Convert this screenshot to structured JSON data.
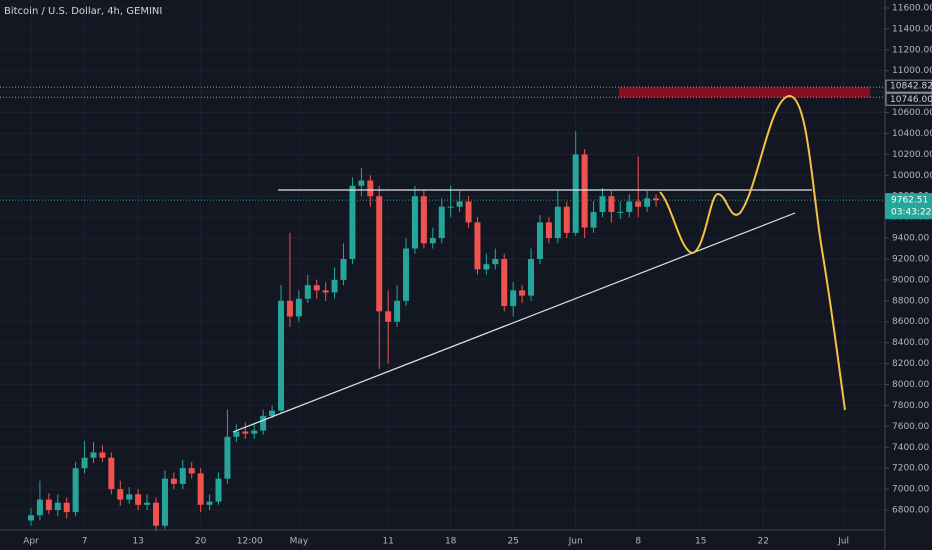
{
  "chart_data": {
    "type": "candlestick",
    "title": "Bitcoin / U.S. Dollar, 4h, GEMINI",
    "x": [
      0,
      1,
      2,
      3,
      4,
      5,
      6,
      7,
      8,
      9,
      10,
      11,
      12,
      13,
      14,
      15,
      16,
      17,
      18,
      19,
      20,
      21,
      22,
      23,
      24,
      25,
      26,
      27,
      28,
      29,
      30,
      31,
      32,
      33,
      34,
      35,
      36,
      37,
      38,
      39,
      40,
      41,
      42,
      43,
      44,
      45,
      46,
      47,
      48,
      49,
      50,
      51,
      52,
      53,
      54,
      55,
      56,
      57,
      58,
      59,
      60,
      61,
      62,
      63,
      64,
      65,
      66,
      67,
      68,
      69,
      70
    ],
    "open": [
      6700,
      6750,
      6900,
      6800,
      6870,
      6780,
      7200,
      7300,
      7350,
      7300,
      7000,
      6900,
      6950,
      6850,
      6870,
      6650,
      7100,
      7050,
      7200,
      7150,
      6850,
      6880,
      7100,
      7500,
      7550,
      7530,
      7560,
      7700,
      7750,
      8800,
      8650,
      8820,
      8950,
      8900,
      8880,
      9000,
      9200,
      9900,
      9950,
      9800,
      8700,
      8600,
      8800,
      9300,
      9800,
      9350,
      9400,
      9700,
      9700,
      9750,
      9550,
      9100,
      9150,
      9200,
      8750,
      8900,
      8850,
      9200,
      9550,
      9400,
      9700,
      9450,
      10200,
      9500,
      9650,
      9800,
      9650,
      9650,
      9750,
      9700,
      9780
    ],
    "high": [
      6820,
      7080,
      6960,
      6950,
      6920,
      7260,
      7460,
      7450,
      7420,
      7350,
      7080,
      7020,
      7000,
      6950,
      6920,
      7180,
      7160,
      7280,
      7260,
      7200,
      6950,
      7160,
      7760,
      7620,
      7640,
      7620,
      7760,
      7800,
      8950,
      9450,
      8900,
      9050,
      9000,
      8980,
      9120,
      9350,
      9980,
      10070,
      10000,
      9900,
      8900,
      8950,
      9400,
      9900,
      9850,
      9500,
      9780,
      9900,
      9850,
      9800,
      9600,
      9250,
      9300,
      9250,
      8980,
      8950,
      9300,
      9620,
      9600,
      9850,
      9750,
      10420,
      10250,
      9750,
      9880,
      9850,
      9750,
      9820,
      10180,
      9850,
      9820
    ],
    "low": [
      6650,
      6700,
      6760,
      6740,
      6720,
      6740,
      7150,
      7250,
      7260,
      6950,
      6840,
      6860,
      6800,
      6800,
      6600,
      6620,
      7000,
      7000,
      7100,
      6780,
      6800,
      6850,
      7050,
      7450,
      7480,
      7480,
      7520,
      7680,
      7720,
      8550,
      8600,
      8780,
      8820,
      8800,
      8820,
      8950,
      9150,
      9800,
      9700,
      8150,
      8200,
      8550,
      8750,
      9250,
      9300,
      9300,
      9350,
      9600,
      9650,
      9500,
      9050,
      9050,
      9100,
      8700,
      8650,
      8780,
      8800,
      9150,
      9350,
      9350,
      9400,
      9420,
      9400,
      9450,
      9600,
      9550,
      9580,
      9600,
      9600,
      9650,
      9700
    ],
    "close": [
      6750,
      6900,
      6800,
      6870,
      6780,
      7200,
      7300,
      7350,
      7300,
      7000,
      6900,
      6950,
      6850,
      6870,
      6650,
      7100,
      7050,
      7200,
      7150,
      6850,
      6880,
      7100,
      7500,
      7550,
      7530,
      7560,
      7700,
      7750,
      8800,
      8650,
      8820,
      8950,
      8900,
      8880,
      9000,
      9200,
      9900,
      9950,
      9800,
      8700,
      8600,
      8800,
      9300,
      9800,
      9350,
      9400,
      9700,
      9700,
      9750,
      9550,
      9100,
      9150,
      9200,
      8750,
      8900,
      8850,
      9200,
      9550,
      9400,
      9700,
      9450,
      10200,
      9500,
      9650,
      9800,
      9650,
      9650,
      9750,
      9700,
      9780,
      9762.51
    ],
    "up_color": "#26a69a",
    "down_color": "#ef5350",
    "xlim": [
      -3.47,
      95.64
    ],
    "xticks": [
      {
        "value": 0,
        "label": "Apr"
      },
      {
        "value": 6,
        "label": "7"
      },
      {
        "value": 12,
        "label": "13"
      },
      {
        "value": 19,
        "label": "20"
      },
      {
        "value": 24.5,
        "label": "12:00"
      },
      {
        "value": 30,
        "label": "May"
      },
      {
        "value": 40,
        "label": "11"
      },
      {
        "value": 47,
        "label": "18"
      },
      {
        "value": 54,
        "label": "25"
      },
      {
        "value": 61,
        "label": "Jun"
      },
      {
        "value": 68,
        "label": "8"
      },
      {
        "value": 75,
        "label": "15"
      },
      {
        "value": 82,
        "label": "22"
      },
      {
        "value": 91,
        "label": "Jul"
      }
    ],
    "ylim": [
      6609,
      11676
    ],
    "yticks": [
      {
        "value": 6800,
        "label": "6800.00"
      },
      {
        "value": 7000,
        "label": "7000.00"
      },
      {
        "value": 7200,
        "label": "7200.00"
      },
      {
        "value": 7400,
        "label": "7400.00"
      },
      {
        "value": 7600,
        "label": "7600.00"
      },
      {
        "value": 7800,
        "label": "7800.00"
      },
      {
        "value": 8000,
        "label": "8000.00"
      },
      {
        "value": 8200,
        "label": "8200.00"
      },
      {
        "value": 8400,
        "label": "8400.00"
      },
      {
        "value": 8600,
        "label": "8600.00"
      },
      {
        "value": 8800,
        "label": "8800.00"
      },
      {
        "value": 9000,
        "label": "9000.00"
      },
      {
        "value": 9200,
        "label": "9200.00"
      },
      {
        "value": 9400,
        "label": "9400.00"
      },
      {
        "value": 9600,
        "label": "9600.00"
      },
      {
        "value": 9800,
        "label": "9800.00"
      },
      {
        "value": 10000,
        "label": "10000.00"
      },
      {
        "value": 10200,
        "label": "10200.00"
      },
      {
        "value": 10400,
        "label": "10400.00"
      },
      {
        "value": 10600,
        "label": "10600.00"
      },
      {
        "value": 10800,
        "label": "10800.00"
      },
      {
        "value": 11000,
        "label": "11000.00"
      },
      {
        "value": 11200,
        "label": "11200.00"
      },
      {
        "value": 11400,
        "label": "11400.00"
      },
      {
        "value": 11600,
        "label": "11600.00"
      }
    ],
    "price_labels": [
      {
        "value": 10842.82,
        "label": "10842.82"
      },
      {
        "value": 10746,
        "label": "10746.00"
      }
    ],
    "zone_color": "#880e1f",
    "last_price": {
      "value": 9762.51,
      "label": "9762.51"
    },
    "countdown": "03:43:22"
  }
}
